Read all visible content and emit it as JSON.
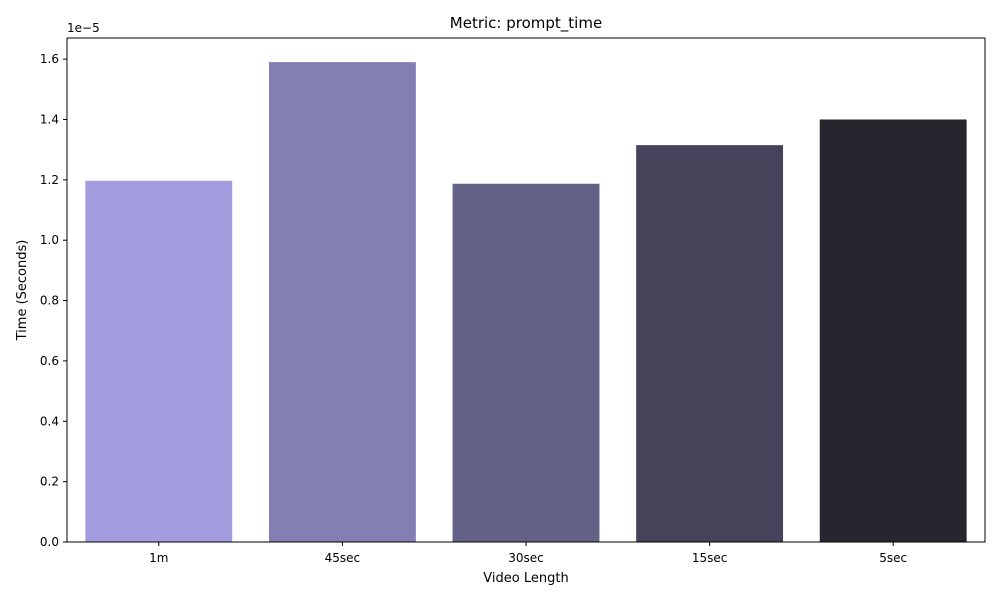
{
  "chart_data": {
    "type": "bar",
    "title": "Metric: prompt_time",
    "xlabel": "Video Length",
    "ylabel": "Time (Seconds)",
    "offset_label": "1e−5",
    "categories": [
      "1m",
      "45sec",
      "30sec",
      "15sec",
      "5sec"
    ],
    "values": [
      1.197e-05,
      1.59e-05,
      1.187e-05,
      1.315e-05,
      1.4e-05
    ],
    "colors": [
      "#a39ddf",
      "#837fb2",
      "#636185",
      "#454359",
      "#27252e"
    ],
    "ylim": [
      0,
      1.67e-05
    ],
    "yticks": [
      0.0,
      0.2,
      0.4,
      0.6,
      0.8,
      1.0,
      1.2,
      1.4,
      1.6
    ],
    "ytick_labels": [
      "0.0",
      "0.2",
      "0.4",
      "0.6",
      "0.8",
      "1.0",
      "1.2",
      "1.4",
      "1.6"
    ],
    "ytick_scale": 1e-05,
    "grid": false,
    "legend": "none"
  }
}
